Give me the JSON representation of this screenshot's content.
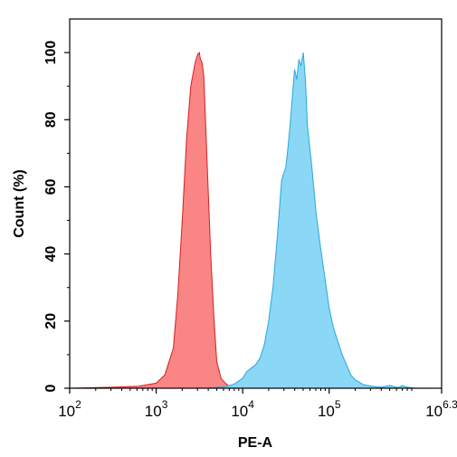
{
  "chart_data": {
    "type": "area",
    "xlabel": "PE-A",
    "ylabel": "Count  (%)",
    "x_scale": "log10",
    "xlim": [
      100,
      1995262
    ],
    "ylim": [
      0,
      110
    ],
    "x_ticks": [
      {
        "value": 100,
        "base": "10",
        "exp": "2"
      },
      {
        "value": 1000,
        "base": "10",
        "exp": "3"
      },
      {
        "value": 10000,
        "base": "10",
        "exp": "4"
      },
      {
        "value": 100000,
        "base": "10",
        "exp": "5"
      },
      {
        "value": 1995262,
        "base": "10",
        "exp": "6.3"
      }
    ],
    "y_ticks": [
      "0",
      "20",
      "40",
      "60",
      "80",
      "100"
    ],
    "y_tick_values": [
      0,
      20,
      40,
      60,
      80,
      100
    ],
    "series": [
      {
        "color": "#fa7b7b",
        "stroke": "#d42020",
        "x": [
          100,
          300,
          630,
          1000,
          1260,
          1580,
          1780,
          2000,
          2240,
          2510,
          2820,
          3020,
          3160,
          3240,
          3390,
          3550,
          3720,
          3980,
          4270,
          4680,
          5010,
          5620,
          6310,
          7080,
          8000
        ],
        "y": [
          0,
          0.3,
          0.6,
          1.5,
          4,
          12,
          28,
          50,
          74,
          90,
          97,
          99.5,
          100,
          98,
          97,
          93,
          80,
          60,
          40,
          20,
          8,
          3,
          1.5,
          0.5,
          0
        ]
      },
      {
        "color": "#80d4f5",
        "stroke": "#2aa8dc",
        "x": [
          4000,
          6310,
          7940,
          10000,
          11220,
          12590,
          14130,
          15850,
          17780,
          19950,
          22390,
          25120,
          28180,
          31620,
          33500,
          35480,
          39810,
          42170,
          44670,
          47320,
          50120,
          53090,
          56230,
          63100,
          70790,
          79430,
          89130,
          100000,
          112200,
          125900,
          141300,
          158500,
          177800,
          199500,
          251200,
          316200,
          398100,
          501200,
          630000,
          700000,
          800000,
          1000000,
          1500000,
          1995262
        ],
        "y": [
          0,
          0.5,
          1.2,
          3,
          5,
          6,
          7,
          9,
          13,
          20,
          30,
          45,
          62,
          66,
          72,
          79,
          95,
          92,
          98,
          96,
          100,
          92,
          78,
          66,
          52,
          42,
          33,
          24,
          18,
          14,
          10,
          7,
          4,
          2.5,
          1,
          0.6,
          0.3,
          0.8,
          0.2,
          0.8,
          0.3,
          0,
          0,
          0
        ]
      }
    ]
  }
}
